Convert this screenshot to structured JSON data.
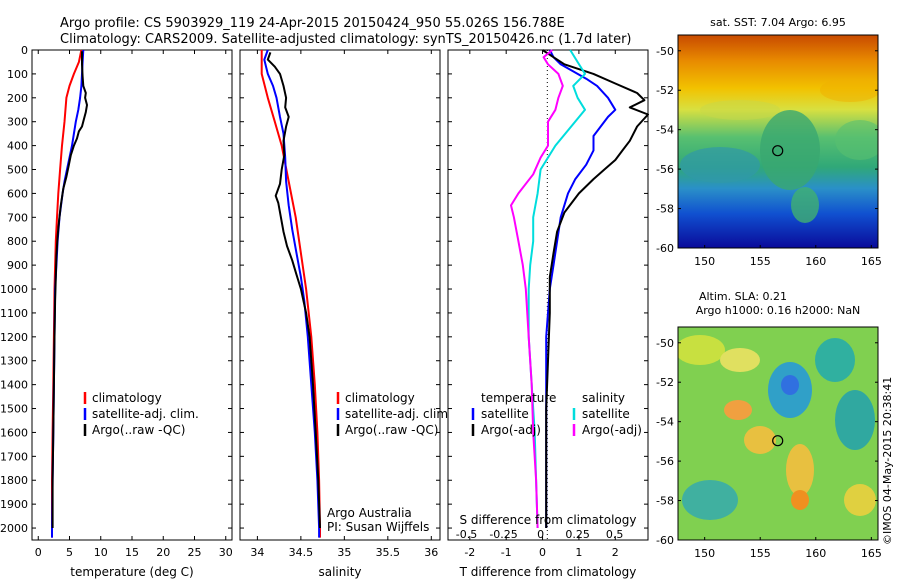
{
  "header": {
    "line1": "Argo profile: CS 5903929_119 24-Apr-2015 20150424_950 55.026S 156.788E",
    "line2": "Climatology: CARS2009. Satellite-adjusted climatology: synTS_20150426.nc (1.7d later)"
  },
  "colors": {
    "climatology": "#ff0000",
    "satellite": "#0000ff",
    "argo": "#000000",
    "sat_salinity": "#00dddd",
    "argo_adj_salinity": "#ff00ff"
  },
  "legends": {
    "profile": [
      "climatology",
      "satellite-adj. clim.",
      "Argo(..raw -QC)"
    ],
    "diff_temperature": {
      "title": "temperature",
      "items": [
        "satellite",
        "Argo(-adj)"
      ]
    },
    "diff_salinity": {
      "title": "salinity",
      "items": [
        "satellite",
        "Argo(-adj)"
      ]
    }
  },
  "credits": {
    "line1": "Argo Australia",
    "line2": "PI: Susan Wijffels",
    "timestamp": "©IMOS 04-May-2015 20:38:41"
  },
  "maps": {
    "sst_title": "sat. SST: 7.04  Argo: 6.95",
    "sla_title1": "Altim. SLA: 0.21",
    "sla_title2": "Argo h1000: 0.16 h2000: NaN",
    "lon_ticks": [
      "150",
      "155",
      "160",
      "165"
    ],
    "lat_ticks": [
      "-50",
      "-52",
      "-54",
      "-56",
      "-58",
      "-60"
    ],
    "float_marker": {
      "lon": 156.788,
      "lat": -55.026
    }
  },
  "chart_data": [
    {
      "type": "line",
      "title": "",
      "xlabel": "temperature (deg C)",
      "ylabel": "",
      "xlim": [
        -1,
        31
      ],
      "ylim": [
        2050,
        0
      ],
      "xticks": [
        "0",
        "5",
        "10",
        "15",
        "20",
        "25",
        "30"
      ],
      "yticks": [
        "0",
        "100",
        "200",
        "300",
        "400",
        "500",
        "600",
        "700",
        "800",
        "900",
        "1000",
        "1100",
        "1200",
        "1300",
        "1400",
        "1500",
        "1600",
        "1700",
        "1800",
        "1900",
        "2000"
      ],
      "series": [
        {
          "name": "climatology",
          "color": "#ff0000",
          "points": [
            [
              6.9,
              0
            ],
            [
              6.5,
              50
            ],
            [
              5.7,
              100
            ],
            [
              5.0,
              150
            ],
            [
              4.5,
              200
            ],
            [
              4.2,
              300
            ],
            [
              3.8,
              400
            ],
            [
              3.5,
              500
            ],
            [
              3.2,
              600
            ],
            [
              3.0,
              700
            ],
            [
              2.8,
              800
            ],
            [
              2.6,
              1000
            ],
            [
              2.5,
              1200
            ],
            [
              2.4,
              1400
            ],
            [
              2.3,
              1600
            ],
            [
              2.2,
              1800
            ],
            [
              2.2,
              2000
            ],
            [
              2.2,
              2040
            ]
          ]
        },
        {
          "name": "satellite-adj. clim.",
          "color": "#0000ff",
          "points": [
            [
              7.2,
              0
            ],
            [
              7.1,
              50
            ],
            [
              7.0,
              100
            ],
            [
              6.9,
              150
            ],
            [
              6.7,
              200
            ],
            [
              6.4,
              250
            ],
            [
              6.0,
              300
            ],
            [
              5.7,
              350
            ],
            [
              5.4,
              400
            ],
            [
              5.0,
              450
            ],
            [
              4.6,
              500
            ],
            [
              4.2,
              550
            ],
            [
              3.9,
              600
            ],
            [
              3.4,
              700
            ],
            [
              3.1,
              800
            ],
            [
              2.9,
              900
            ],
            [
              2.7,
              1000
            ],
            [
              2.6,
              1200
            ],
            [
              2.5,
              1400
            ],
            [
              2.4,
              1600
            ],
            [
              2.3,
              1800
            ],
            [
              2.2,
              2000
            ],
            [
              2.2,
              2040
            ]
          ]
        },
        {
          "name": "Argo(..raw -QC)",
          "color": "#000000",
          "points": [
            [
              7.0,
              5
            ],
            [
              7.0,
              60
            ],
            [
              7.1,
              110
            ],
            [
              7.2,
              150
            ],
            [
              7.6,
              180
            ],
            [
              7.5,
              200
            ],
            [
              7.8,
              230
            ],
            [
              7.6,
              260
            ],
            [
              7.3,
              290
            ],
            [
              7.0,
              320
            ],
            [
              6.5,
              340
            ],
            [
              6.2,
              370
            ],
            [
              5.7,
              400
            ],
            [
              5.2,
              440
            ],
            [
              4.9,
              480
            ],
            [
              4.5,
              530
            ],
            [
              4.0,
              580
            ],
            [
              3.6,
              650
            ],
            [
              3.3,
              720
            ],
            [
              3.1,
              780
            ],
            [
              2.9,
              860
            ],
            [
              2.8,
              950
            ],
            [
              2.7,
              1050
            ],
            [
              2.6,
              1200
            ],
            [
              2.5,
              1400
            ],
            [
              2.4,
              1600
            ],
            [
              2.3,
              1800
            ],
            [
              2.3,
              2000
            ]
          ]
        }
      ]
    },
    {
      "type": "line",
      "title": "",
      "xlabel": "salinity",
      "ylabel": "",
      "xlim": [
        33.8,
        36.1
      ],
      "ylim": [
        2050,
        0
      ],
      "xticks": [
        "34",
        "34.5",
        "35",
        "35.5",
        "36"
      ],
      "series": [
        {
          "name": "climatology",
          "color": "#ff0000",
          "points": [
            [
              34.05,
              0
            ],
            [
              34.05,
              100
            ],
            [
              34.12,
              200
            ],
            [
              34.2,
              300
            ],
            [
              34.28,
              400
            ],
            [
              34.36,
              550
            ],
            [
              34.44,
              700
            ],
            [
              34.5,
              850
            ],
            [
              34.56,
              1000
            ],
            [
              34.62,
              1200
            ],
            [
              34.66,
              1400
            ],
            [
              34.69,
              1600
            ],
            [
              34.71,
              1800
            ],
            [
              34.72,
              2000
            ],
            [
              34.72,
              2040
            ]
          ]
        },
        {
          "name": "satellite-adj. clim.",
          "color": "#0000ff",
          "points": [
            [
              34.12,
              0
            ],
            [
              34.08,
              40
            ],
            [
              34.12,
              100
            ],
            [
              34.18,
              150
            ],
            [
              34.22,
              200
            ],
            [
              34.26,
              280
            ],
            [
              34.3,
              350
            ],
            [
              34.32,
              450
            ],
            [
              34.33,
              550
            ],
            [
              34.36,
              650
            ],
            [
              34.4,
              750
            ],
            [
              34.45,
              850
            ],
            [
              34.5,
              950
            ],
            [
              34.54,
              1050
            ],
            [
              34.58,
              1200
            ],
            [
              34.62,
              1400
            ],
            [
              34.66,
              1600
            ],
            [
              34.69,
              1800
            ],
            [
              34.71,
              2000
            ],
            [
              34.71,
              2040
            ]
          ]
        },
        {
          "name": "Argo(..raw -QC)",
          "color": "#000000",
          "points": [
            [
              34.15,
              10
            ],
            [
              34.12,
              40
            ],
            [
              34.2,
              70
            ],
            [
              34.26,
              100
            ],
            [
              34.3,
              150
            ],
            [
              34.33,
              200
            ],
            [
              34.32,
              240
            ],
            [
              34.36,
              280
            ],
            [
              34.33,
              320
            ],
            [
              34.3,
              380
            ],
            [
              34.31,
              440
            ],
            [
              34.28,
              500
            ],
            [
              34.26,
              560
            ],
            [
              34.21,
              610
            ],
            [
              34.24,
              640
            ],
            [
              34.27,
              700
            ],
            [
              34.3,
              760
            ],
            [
              34.34,
              820
            ],
            [
              34.4,
              880
            ],
            [
              34.45,
              940
            ],
            [
              34.5,
              1000
            ],
            [
              34.56,
              1100
            ],
            [
              34.6,
              1200
            ],
            [
              34.64,
              1400
            ],
            [
              34.67,
              1600
            ],
            [
              34.7,
              1800
            ],
            [
              34.72,
              2000
            ]
          ]
        }
      ]
    },
    {
      "type": "line",
      "title": "",
      "xlabel": "T difference from climatology",
      "xlabel2": "S difference from climatology",
      "ylabel": "",
      "xlim": [
        -2.6,
        2.9
      ],
      "ylim": [
        2050,
        0
      ],
      "xticks": [
        "-2",
        "-1",
        "0",
        "1",
        "2"
      ],
      "xticks2": [
        "-0.5",
        "-0.25",
        "0",
        "0.25",
        "0.5"
      ],
      "series": [
        {
          "name": "satellite",
          "group": "temperature",
          "color": "#0000ff",
          "points": [
            [
              0.2,
              0
            ],
            [
              0.3,
              30
            ],
            [
              0.5,
              60
            ],
            [
              1.2,
              120
            ],
            [
              1.5,
              150
            ],
            [
              1.8,
              200
            ],
            [
              2.0,
              250
            ],
            [
              1.8,
              280
            ],
            [
              1.6,
              320
            ],
            [
              1.4,
              360
            ],
            [
              1.4,
              420
            ],
            [
              1.2,
              480
            ],
            [
              0.9,
              540
            ],
            [
              0.7,
              600
            ],
            [
              0.5,
              700
            ],
            [
              0.4,
              800
            ],
            [
              0.3,
              900
            ],
            [
              0.2,
              1000
            ],
            [
              0.1,
              1200
            ],
            [
              0.1,
              1400
            ],
            [
              0.1,
              1600
            ],
            [
              0.1,
              1800
            ],
            [
              0.1,
              2000
            ]
          ]
        },
        {
          "name": "Argo(-adj)",
          "group": "temperature",
          "color": "#000000",
          "points": [
            [
              0.0,
              0
            ],
            [
              0.3,
              30
            ],
            [
              0.6,
              60
            ],
            [
              1.4,
              100
            ],
            [
              2.0,
              140
            ],
            [
              2.6,
              180
            ],
            [
              2.8,
              210
            ],
            [
              2.4,
              240
            ],
            [
              2.9,
              270
            ],
            [
              2.6,
              320
            ],
            [
              2.4,
              380
            ],
            [
              2.2,
              420
            ],
            [
              2.0,
              460
            ],
            [
              1.7,
              500
            ],
            [
              1.4,
              540
            ],
            [
              1.0,
              600
            ],
            [
              0.6,
              680
            ],
            [
              0.4,
              760
            ],
            [
              0.3,
              850
            ],
            [
              0.2,
              950
            ],
            [
              0.2,
              1100
            ],
            [
              0.15,
              1300
            ],
            [
              0.1,
              1500
            ],
            [
              0.1,
              1700
            ],
            [
              0.1,
              1900
            ],
            [
              0.1,
              2000
            ]
          ]
        },
        {
          "name": "satellite",
          "group": "salinity",
          "color": "#00dddd",
          "points": [
            [
              0.2,
              0
            ],
            [
              0.25,
              50
            ],
            [
              0.3,
              100
            ],
            [
              0.22,
              150
            ],
            [
              0.25,
              200
            ],
            [
              0.3,
              250
            ],
            [
              0.1,
              400
            ],
            [
              0.0,
              500
            ],
            [
              -0.02,
              600
            ],
            [
              -0.05,
              700
            ],
            [
              -0.05,
              800
            ],
            [
              -0.07,
              900
            ],
            [
              -0.08,
              1000
            ],
            [
              -0.08,
              1200
            ],
            [
              -0.06,
              1400
            ],
            [
              -0.04,
              1600
            ],
            [
              -0.03,
              1800
            ],
            [
              -0.02,
              2000
            ]
          ]
        },
        {
          "name": "Argo(-adj)",
          "group": "salinity",
          "color": "#ff00ff",
          "points": [
            [
              0.08,
              0
            ],
            [
              0.02,
              30
            ],
            [
              0.05,
              60
            ],
            [
              0.12,
              100
            ],
            [
              0.15,
              150
            ],
            [
              0.12,
              200
            ],
            [
              0.1,
              250
            ],
            [
              0.05,
              300
            ],
            [
              0.05,
              400
            ],
            [
              0.0,
              450
            ],
            [
              -0.05,
              520
            ],
            [
              -0.15,
              600
            ],
            [
              -0.2,
              650
            ],
            [
              -0.18,
              700
            ],
            [
              -0.15,
              800
            ],
            [
              -0.12,
              900
            ],
            [
              -0.1,
              1000
            ],
            [
              -0.08,
              1200
            ],
            [
              -0.06,
              1400
            ],
            [
              -0.05,
              1600
            ],
            [
              -0.03,
              1800
            ],
            [
              -0.02,
              2000
            ]
          ]
        }
      ]
    }
  ]
}
